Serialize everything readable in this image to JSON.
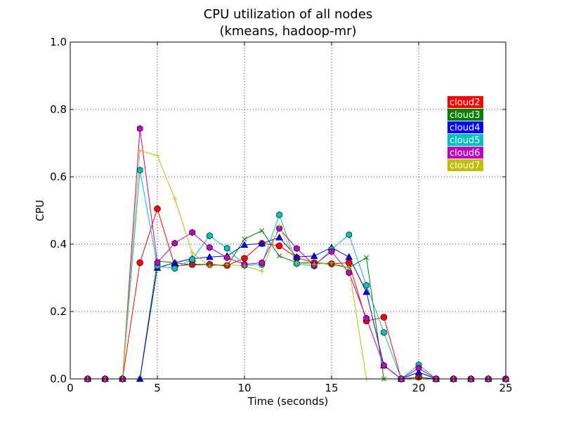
{
  "chart_data": {
    "type": "line",
    "title": "CPU utilization of all nodes",
    "subtitle": "(kmeans, hadoop-mr)",
    "xlabel": "Time (seconds)",
    "ylabel": "CPU",
    "xlim": [
      0,
      25
    ],
    "ylim": [
      0,
      1.0
    ],
    "xticks": [
      0,
      5,
      10,
      15,
      20,
      25
    ],
    "yticks": [
      0.0,
      0.2,
      0.4,
      0.6,
      0.8,
      1.0
    ],
    "xtick_labels": [
      "0",
      "5",
      "10",
      "15",
      "20",
      "25"
    ],
    "ytick_labels": [
      "0.0",
      "0.2",
      "0.4",
      "0.6",
      "0.8",
      "1.0"
    ],
    "grid": true,
    "legend_position": "right",
    "series": [
      {
        "name": "cloud2",
        "color": "#ff0000",
        "marker": "circle",
        "x": [
          1,
          2,
          3,
          4,
          5,
          6,
          7,
          8,
          9,
          10,
          11,
          12,
          13,
          14,
          15,
          16,
          17,
          18,
          19,
          20,
          21,
          22,
          23,
          24,
          25
        ],
        "values": [
          0,
          0,
          0,
          0.345,
          0.505,
          0.335,
          0.34,
          0.34,
          0.337,
          0.358,
          0.402,
          0.395,
          0.36,
          0.345,
          0.342,
          0.345,
          0.172,
          0.183,
          0,
          0.005,
          0,
          0,
          0,
          0,
          0
        ]
      },
      {
        "name": "cloud3",
        "color": "#008000",
        "marker": "x",
        "x": [
          1,
          2,
          3,
          4,
          5,
          6,
          7,
          8,
          9,
          10,
          11,
          12,
          13,
          14,
          15,
          16,
          17,
          18,
          19,
          20,
          21,
          22,
          23,
          24,
          25
        ],
        "values": [
          0,
          0,
          0,
          0,
          0.35,
          0.345,
          0.338,
          0.34,
          0.335,
          0.415,
          0.44,
          0.365,
          0.345,
          0.345,
          0.34,
          0.33,
          0.36,
          0,
          0,
          0.005,
          0,
          0,
          0,
          0,
          0
        ]
      },
      {
        "name": "cloud4",
        "color": "#0000ff",
        "marker": "triangle",
        "x": [
          1,
          2,
          3,
          4,
          5,
          6,
          7,
          8,
          9,
          10,
          11,
          12,
          13,
          14,
          15,
          16,
          17,
          18,
          19,
          20,
          21,
          22,
          23,
          24,
          25
        ],
        "values": [
          0,
          0,
          0,
          0,
          0.33,
          0.345,
          0.357,
          0.362,
          0.365,
          0.398,
          0.402,
          0.42,
          0.362,
          0.365,
          0.39,
          0.362,
          0.258,
          0.04,
          0,
          0.02,
          0,
          0,
          0,
          0,
          0
        ]
      },
      {
        "name": "cloud5",
        "color": "#00bfbf",
        "marker": "hexagon",
        "x": [
          1,
          2,
          3,
          4,
          5,
          6,
          7,
          8,
          9,
          10,
          11,
          12,
          13,
          14,
          15,
          16,
          17,
          18,
          19,
          20,
          21,
          22,
          23,
          24,
          25
        ],
        "values": [
          0,
          0,
          0,
          0.62,
          0.335,
          0.328,
          0.355,
          0.425,
          0.388,
          0.337,
          0.34,
          0.487,
          0.342,
          0.335,
          0.385,
          0.428,
          0.278,
          0.138,
          0,
          0.042,
          0,
          0,
          0,
          0,
          0
        ]
      },
      {
        "name": "cloud6",
        "color": "#bf00bf",
        "marker": "hexagon",
        "x": [
          1,
          2,
          3,
          4,
          5,
          6,
          7,
          8,
          9,
          10,
          11,
          12,
          13,
          14,
          15,
          16,
          17,
          18,
          19,
          20,
          21,
          22,
          23,
          24,
          25
        ],
        "values": [
          0,
          0,
          0,
          0.743,
          0.345,
          0.403,
          0.435,
          0.39,
          0.36,
          0.34,
          0.345,
          0.447,
          0.387,
          0.338,
          0.378,
          0.315,
          0.18,
          0.04,
          0,
          0.032,
          0,
          0,
          0,
          0,
          0
        ]
      },
      {
        "name": "cloud7",
        "color": "#bfbf00",
        "marker": "plus",
        "x": [
          1,
          2,
          3,
          4,
          5,
          6,
          7,
          8,
          9,
          10,
          11,
          12,
          13,
          14,
          15,
          16,
          17,
          18,
          19,
          20,
          21,
          22,
          23,
          24,
          25
        ],
        "values": [
          0,
          0,
          0,
          0.678,
          0.663,
          0.535,
          0.375,
          0.335,
          0.34,
          0.335,
          0.32,
          0.455,
          0.345,
          0.34,
          0.345,
          0.33,
          0,
          0,
          0,
          0,
          0,
          0,
          0,
          0,
          0
        ]
      }
    ]
  }
}
